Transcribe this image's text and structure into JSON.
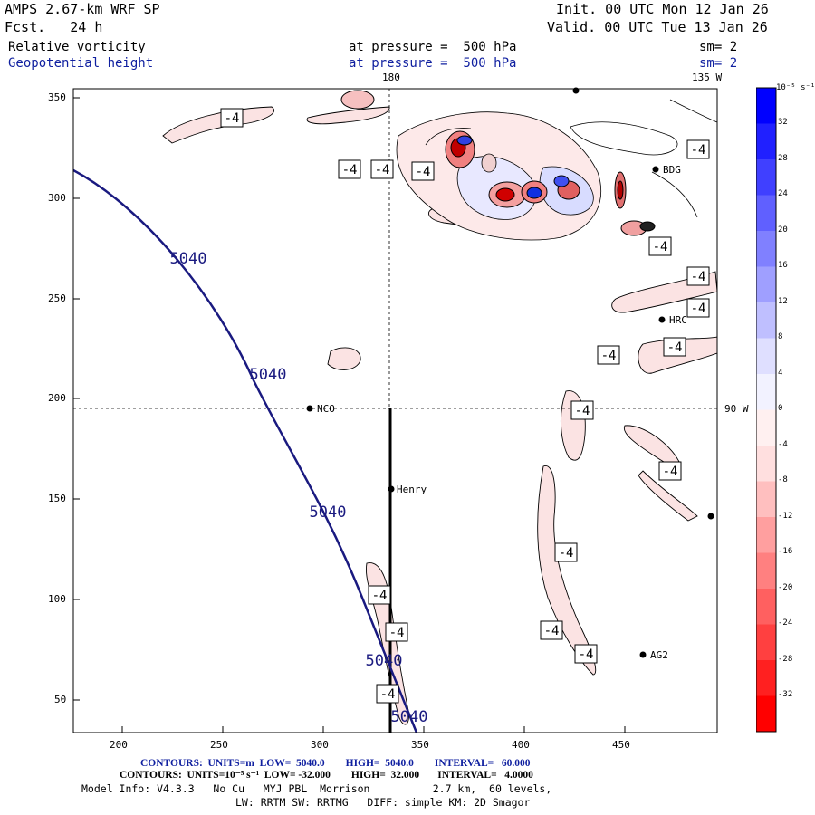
{
  "header": {
    "model": "AMPS 2.67-km WRF SP",
    "fcst": "Fcst.   24 h",
    "init": "Init. 00 UTC Mon 12 Jan 26",
    "valid": "Valid. 00 UTC Tue 13 Jan 26",
    "field1": "Relative vorticity",
    "field2": "Geopotential height",
    "pressure1": "at pressure =  500 hPa",
    "pressure2": "at pressure =  500 hPa",
    "sm1": "sm= 2",
    "sm2": "sm= 2"
  },
  "map": {
    "lon_top_label": "180",
    "lon_right_top_label": "135 W",
    "lon_right_mid_label": "90 W",
    "x_ticks": [
      "200",
      "250",
      "300",
      "350",
      "400",
      "450"
    ],
    "y_ticks": [
      "350",
      "300",
      "250",
      "200",
      "150",
      "100",
      "50"
    ],
    "stations": [
      {
        "name": "BDG"
      },
      {
        "name": "HRC"
      },
      {
        "name": "NCO"
      },
      {
        "name": "Henry"
      },
      {
        "name": "AG2"
      }
    ],
    "height_contour_label": "5040",
    "vort_contour_label": "-4"
  },
  "colorbar": {
    "unit_label": "10⁻⁵ s⁻¹",
    "ticks": [
      "32",
      "28",
      "24",
      "20",
      "16",
      "12",
      "8",
      "4",
      "0",
      "-4",
      "-8",
      "-12",
      "-16",
      "-20",
      "-24",
      "-28",
      "-32"
    ],
    "colors": {
      "blue_strong": "#0000ff",
      "blue_light": "#e6e6ff",
      "red_light": "#ffe6e6",
      "red_strong": "#ff0000"
    }
  },
  "footer": {
    "contours1": "CONTOURS:  UNITS=m  LOW=  5040.0        HIGH=  5040.0        INTERVAL=   60.000",
    "contours2": "CONTOURS:  UNITS=10⁻⁵ s⁻¹  LOW= -32.000        HIGH=  32.000       INTERVAL=   4.0000",
    "model_info": "Model Info: V4.3.3   No Cu   MYJ PBL  Morrison          2.7 km,  60 levels,",
    "physics": "LW: RRTM SW: RRTMG   DIFF: simple KM: 2D Smagor"
  }
}
